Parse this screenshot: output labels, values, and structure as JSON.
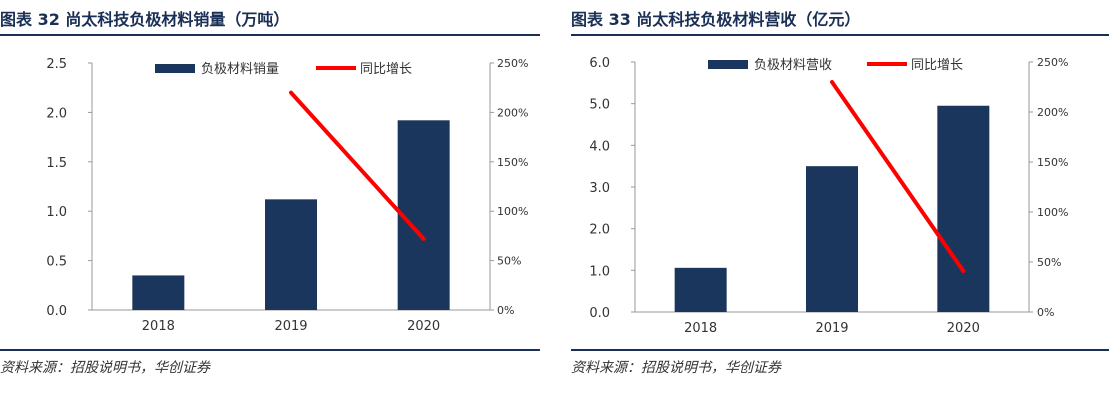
{
  "colors": {
    "bar": "#1b365d",
    "line": "#ff0000",
    "accent": "#1a2f55"
  },
  "charts": [
    {
      "title": "图表 32   尚太科技负极材料销量（万吨）",
      "source": "资料来源：招股说明书，华创证券",
      "chart_data": {
        "type": "bar",
        "categories": [
          "2018",
          "2019",
          "2020"
        ],
        "series": [
          {
            "name": "负极材料销量",
            "type": "bar",
            "axis": "left",
            "values": [
              0.35,
              1.12,
              1.92
            ]
          },
          {
            "name": "同比增长",
            "type": "line",
            "axis": "right",
            "values": [
              null,
              2.2,
              0.72
            ]
          }
        ],
        "y_left": {
          "min": 0,
          "max": 2.5,
          "ticks": [
            "0.0",
            "0.5",
            "1.0",
            "1.5",
            "2.0",
            "2.5"
          ]
        },
        "y_right": {
          "min": 0,
          "max": 2.5,
          "ticks": [
            "0%",
            "50%",
            "100%",
            "150%",
            "200%",
            "250%"
          ]
        },
        "legend_position": "top"
      }
    },
    {
      "title": "图表 33   尚太科技负极材料营收（亿元）",
      "source": "资料来源：招股说明书，华创证券",
      "chart_data": {
        "type": "bar",
        "categories": [
          "2018",
          "2019",
          "2020"
        ],
        "series": [
          {
            "name": "负极材料营收",
            "type": "bar",
            "axis": "left",
            "values": [
              1.06,
              3.5,
              4.95
            ]
          },
          {
            "name": "同比增长",
            "type": "line",
            "axis": "right",
            "values": [
              null,
              2.3,
              0.41
            ]
          }
        ],
        "y_left": {
          "min": 0,
          "max": 6.0,
          "ticks": [
            "0.0",
            "1.0",
            "2.0",
            "3.0",
            "4.0",
            "5.0",
            "6.0"
          ]
        },
        "y_right": {
          "min": 0,
          "max": 2.5,
          "ticks": [
            "0%",
            "50%",
            "100%",
            "150%",
            "200%",
            "250%"
          ]
        },
        "legend_position": "top"
      }
    }
  ]
}
